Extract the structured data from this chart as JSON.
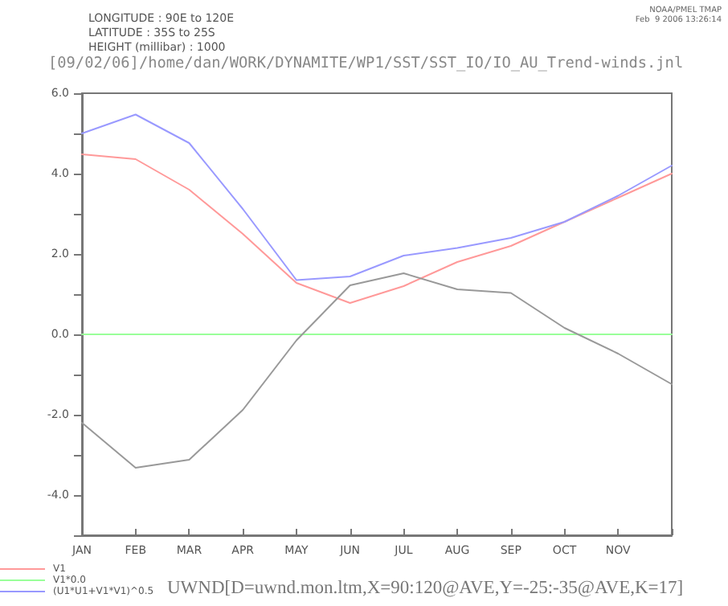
{
  "chart_data": {
    "type": "line",
    "title": "[09/02/06]/home/dan/WORK/DYNAMITE/WP1/SST/SST_IO/IO_AU_Trend-winds.jnl",
    "annotations": [
      "LONGITUDE : 90E to 120E",
      "LATITUDE : 35S to 25S",
      "HEIGHT (millibar) : 1000",
      "NOAA/PMEL TMAP",
      "Feb  9 2006 13:26:14"
    ],
    "xlabel": "UWND[D=uwnd.mon.ltm,X=90:120@AVE,Y=-25:-35@AVE,K=17]",
    "categories": [
      "JAN",
      "FEB",
      "MAR",
      "APR",
      "MAY",
      "JUN",
      "JUL",
      "AUG",
      "SEP",
      "OCT",
      "NOV",
      null
    ],
    "ylim": [
      -5,
      6
    ],
    "yticks": [
      {
        "value": -5,
        "label": null
      },
      {
        "value": -4,
        "label": "-4.0"
      },
      {
        "value": -3,
        "label": null
      },
      {
        "value": -2,
        "label": "-2.0"
      },
      {
        "value": -1,
        "label": null
      },
      {
        "value": 0,
        "label": "0.0"
      },
      {
        "value": 1,
        "label": null
      },
      {
        "value": 2,
        "label": "2.0"
      },
      {
        "value": 3,
        "label": null
      },
      {
        "value": 4,
        "label": "4.0"
      },
      {
        "value": 5,
        "label": null
      },
      {
        "value": 6,
        "label": "6.0"
      }
    ],
    "grid": false,
    "legend": "bottom left",
    "marker": "none",
    "line_style": "solid",
    "series": [
      {
        "name": "V1",
        "color": "#ff9999",
        "values": [
          4.48,
          4.36,
          3.6,
          2.5,
          1.28,
          0.78,
          1.2,
          1.8,
          2.2,
          2.8,
          3.4,
          4.0
        ]
      },
      {
        "name": "V1*0.0",
        "color": "#99ff99",
        "values": [
          0,
          0,
          0,
          0,
          0,
          0,
          0,
          0,
          0,
          0,
          0,
          0
        ]
      },
      {
        "name": "(U1*U1+V1*V1)^0.5",
        "color": "#9999ff",
        "values": [
          5.0,
          5.47,
          4.76,
          3.12,
          1.35,
          1.44,
          1.96,
          2.15,
          2.4,
          2.8,
          3.45,
          4.2
        ]
      },
      {
        "color": "#999999",
        "values": [
          -2.2,
          -3.32,
          -3.12,
          -1.88,
          -0.15,
          1.22,
          1.52,
          1.12,
          1.03,
          0.16,
          -0.48,
          -1.24
        ]
      }
    ]
  }
}
